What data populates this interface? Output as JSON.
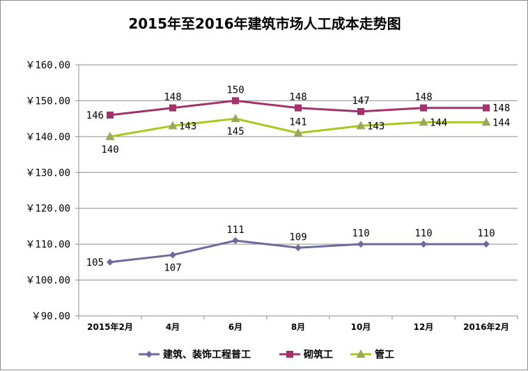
{
  "chart_data": {
    "type": "line",
    "title": "2015年至2016年建筑市场人工成本走势图",
    "categories": [
      "2015年2月",
      "4月",
      "6月",
      "8月",
      "10月",
      "12月",
      "2016年2月"
    ],
    "ylim": [
      90,
      160
    ],
    "yticks": [
      "￥160.00",
      "￥150.00",
      "￥140.00",
      "￥130.00",
      "￥120.00",
      "￥110.00",
      "￥100.00",
      "￥90.00"
    ],
    "ytick_values": [
      160,
      150,
      140,
      130,
      120,
      110,
      100,
      90
    ],
    "grid": true,
    "legend_position": "bottom",
    "series": [
      {
        "name": "建筑、装饰工程普工",
        "values": [
          105,
          107,
          111,
          109,
          110,
          110,
          110
        ],
        "labels": [
          "105",
          "107",
          "111",
          "109",
          "110",
          "110",
          "110"
        ],
        "label_pos": [
          "left",
          "below",
          "above",
          "above",
          "above",
          "above",
          "above"
        ],
        "color": "#6b6b9e",
        "marker": "diamond"
      },
      {
        "name": "砌筑工",
        "values": [
          146,
          148,
          150,
          148,
          147,
          148,
          148
        ],
        "labels": [
          "146",
          "148",
          "150",
          "148",
          "147",
          "148",
          "148"
        ],
        "label_pos": [
          "left",
          "above",
          "above",
          "above",
          "above",
          "above",
          "right"
        ],
        "color": "#a0336b",
        "marker": "square"
      },
      {
        "name": "管工",
        "values": [
          140,
          143,
          145,
          141,
          143,
          144,
          144
        ],
        "labels": [
          "140",
          "143",
          "145",
          "141",
          "143",
          "144",
          "144"
        ],
        "label_pos": [
          "below",
          "right",
          "below",
          "above",
          "right",
          "right",
          "right"
        ],
        "color": "#a8c820",
        "marker": "triangle"
      }
    ]
  }
}
